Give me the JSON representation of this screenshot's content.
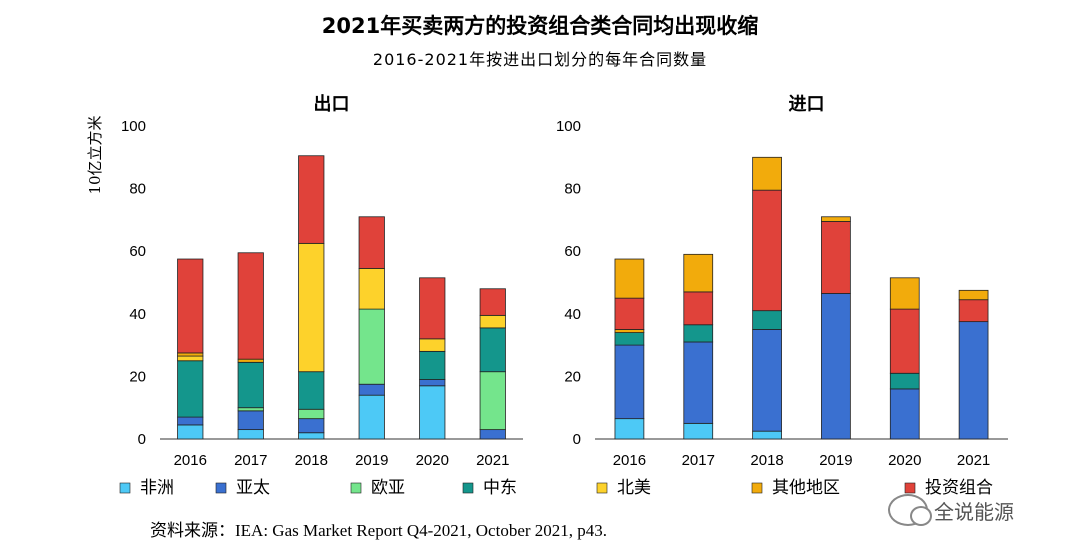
{
  "title": "2021年买卖两方的投资组合类合同均出现收缩",
  "subtitle": "2016-2021年按进出口划分的每年合同数量",
  "source": "资料来源：IEA: Gas Market Report Q4-2021, October 2021, p43.",
  "watermark": "全说能源",
  "colors": {
    "非洲": "#4dc9f6",
    "亚太": "#3a70d0",
    "欧亚": "#74e58c",
    "中东": "#14968c",
    "北美": "#fdd22b",
    "其他地区": "#f2ab0c",
    "投资组合": "#e0423a"
  },
  "legend": [
    "非洲",
    "亚太",
    "欧亚",
    "中东",
    "北美",
    "其他地区",
    "投资组合"
  ],
  "chart_data": [
    {
      "type": "bar",
      "stacked": true,
      "title": "出口",
      "ylabel": "10亿立方米",
      "ylim": [
        0,
        100
      ],
      "yticks": [
        0,
        20,
        40,
        60,
        80,
        100
      ],
      "categories": [
        "2016",
        "2017",
        "2018",
        "2019",
        "2020",
        "2021"
      ],
      "series": [
        {
          "name": "非洲",
          "values": [
            4.5,
            3,
            2,
            14,
            17,
            0
          ]
        },
        {
          "name": "亚太",
          "values": [
            2.5,
            6,
            4.5,
            3.5,
            2,
            3
          ]
        },
        {
          "name": "欧亚",
          "values": [
            0,
            1,
            3,
            24,
            0,
            18.5
          ]
        },
        {
          "name": "中东",
          "values": [
            18,
            14.5,
            12,
            0,
            9,
            14
          ]
        },
        {
          "name": "北美",
          "values": [
            1.5,
            0,
            41,
            13,
            4,
            4
          ]
        },
        {
          "name": "其他地区",
          "values": [
            1,
            1,
            0,
            0,
            0,
            0
          ]
        },
        {
          "name": "投资组合",
          "values": [
            30,
            34,
            28,
            16.5,
            19.5,
            8.5
          ]
        }
      ]
    },
    {
      "type": "bar",
      "stacked": true,
      "title": "进口",
      "ylabel": "",
      "ylim": [
        0,
        100
      ],
      "yticks": [
        0,
        20,
        40,
        60,
        80,
        100
      ],
      "categories": [
        "2016",
        "2017",
        "2018",
        "2019",
        "2020",
        "2021"
      ],
      "series": [
        {
          "name": "非洲",
          "values": [
            6.5,
            5,
            2.5,
            0,
            0,
            0
          ]
        },
        {
          "name": "亚太",
          "values": [
            23.5,
            26,
            32.5,
            46.5,
            16,
            37.5
          ]
        },
        {
          "name": "欧亚",
          "values": [
            0,
            0,
            0,
            0,
            0,
            0
          ]
        },
        {
          "name": "中东",
          "values": [
            4,
            5.5,
            6,
            0,
            5,
            0
          ]
        },
        {
          "name": "北美",
          "values": [
            0,
            0,
            0,
            0,
            0,
            0
          ]
        },
        {
          "name": "其他地区",
          "values": [
            1,
            0,
            0,
            0,
            0,
            0
          ]
        },
        {
          "name": "投资组合",
          "values": [
            10,
            10.5,
            38.5,
            23,
            20.5,
            7
          ]
        },
        {
          "name": "其他地区顶部",
          "legend_name": "其他地区",
          "values": [
            12.5,
            12,
            10.5,
            1.5,
            10,
            3
          ]
        }
      ]
    }
  ]
}
